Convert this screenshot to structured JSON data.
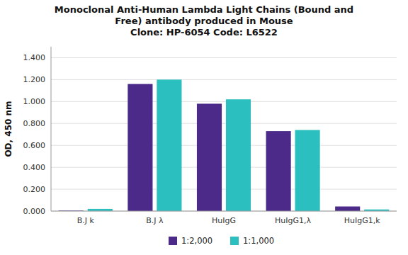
{
  "chart_data": {
    "type": "bar",
    "title": "Monoclonal Anti-Human Lambda Light Chains (Bound and\nFree) antibody produced in Mouse\nClone: HP-6054  Code: L6522",
    "ylabel": "OD, 450 nm",
    "categories": [
      "B.J k",
      "B.J λ",
      "HuIgG",
      "HuIgG1,λ",
      "HuIgG1,k"
    ],
    "series": [
      {
        "name": "1:2,000",
        "color": "#4B2A8A",
        "values": [
          0.005,
          1.16,
          0.98,
          0.73,
          0.042
        ]
      },
      {
        "name": "1:1,000",
        "color": "#2BBFBF",
        "values": [
          0.02,
          1.2,
          1.02,
          0.74,
          0.015
        ]
      }
    ],
    "ylim": [
      0,
      1.5
    ],
    "yticks": [
      {
        "value": 0.0,
        "label": "0.000"
      },
      {
        "value": 0.2,
        "label": "0.200"
      },
      {
        "value": 0.4,
        "label": "0.400"
      },
      {
        "value": 0.6,
        "label": "0.600"
      },
      {
        "value": 0.8,
        "label": "0.800"
      },
      {
        "value": 1.0,
        "label": "1.000"
      },
      {
        "value": 1.2,
        "label": "1.200"
      },
      {
        "value": 1.4,
        "label": "1.400"
      }
    ],
    "grid": true,
    "legend": "bottom"
  }
}
